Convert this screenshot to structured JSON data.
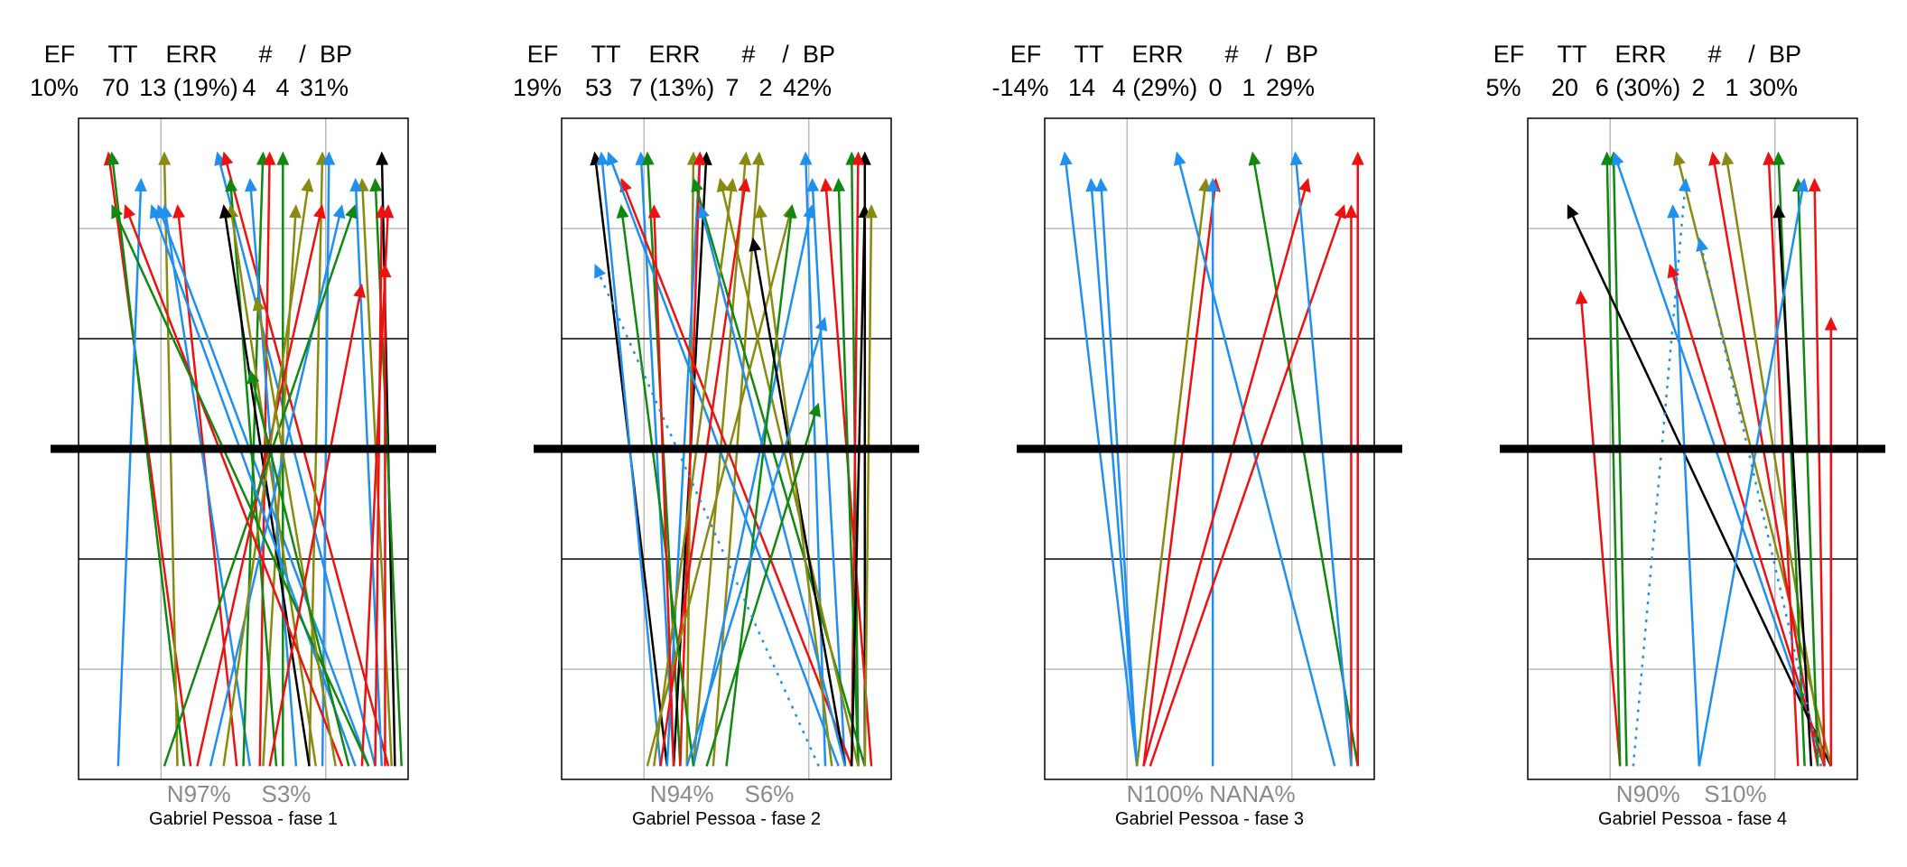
{
  "colors": {
    "blue": "#2090f0",
    "red": "#ee1111",
    "green": "#118811",
    "olive": "#8a8a11",
    "black": "#000000",
    "grid_light": "#bbbbbb",
    "grid_dark": "#000000"
  },
  "header_labels": [
    "EF",
    "TT",
    "ERR",
    "#",
    "/",
    "BP"
  ],
  "chart_data": [
    {
      "type": "line",
      "caption": "Gabriel Pessoa  - fase 1",
      "stats": [
        "10%",
        "70",
        "13 (19%)",
        "4",
        "4",
        "31%"
      ],
      "bottom_labels": [
        "N97%",
        "S3%"
      ],
      "xlim": [
        0,
        1
      ],
      "ylim": [
        0,
        1
      ],
      "segments": [
        {
          "x0": 0.34,
          "y0": 0.02,
          "x1": 0.09,
          "y1": 0.95,
          "c": "red"
        },
        {
          "x0": 0.32,
          "y0": 0.02,
          "x1": 0.1,
          "y1": 0.95,
          "c": "green"
        },
        {
          "x0": 0.3,
          "y0": 0.02,
          "x1": 0.26,
          "y1": 0.95,
          "c": "olive"
        },
        {
          "x0": 0.12,
          "y0": 0.02,
          "x1": 0.19,
          "y1": 0.91,
          "c": "blue"
        },
        {
          "x0": 0.48,
          "y0": 0.02,
          "x1": 0.3,
          "y1": 0.87,
          "c": "red"
        },
        {
          "x0": 0.52,
          "y0": 0.02,
          "x1": 0.26,
          "y1": 0.87,
          "c": "blue"
        },
        {
          "x0": 0.88,
          "y0": 0.02,
          "x1": 0.24,
          "y1": 0.87,
          "c": "blue"
        },
        {
          "x0": 0.9,
          "y0": 0.02,
          "x1": 0.42,
          "y1": 0.95,
          "c": "blue"
        },
        {
          "x0": 0.94,
          "y0": 0.02,
          "x1": 0.44,
          "y1": 0.95,
          "c": "red"
        },
        {
          "x0": 0.5,
          "y0": 0.02,
          "x1": 0.56,
          "y1": 0.95,
          "c": "green"
        },
        {
          "x0": 0.55,
          "y0": 0.02,
          "x1": 0.58,
          "y1": 0.95,
          "c": "red"
        },
        {
          "x0": 0.62,
          "y0": 0.02,
          "x1": 0.62,
          "y1": 0.95,
          "c": "green"
        },
        {
          "x0": 0.7,
          "y0": 0.02,
          "x1": 0.74,
          "y1": 0.95,
          "c": "olive"
        },
        {
          "x0": 0.74,
          "y0": 0.02,
          "x1": 0.76,
          "y1": 0.95,
          "c": "blue"
        },
        {
          "x0": 0.96,
          "y0": 0.02,
          "x1": 0.92,
          "y1": 0.95,
          "c": "black"
        },
        {
          "x0": 0.98,
          "y0": 0.02,
          "x1": 0.9,
          "y1": 0.91,
          "c": "green"
        },
        {
          "x0": 0.95,
          "y0": 0.02,
          "x1": 0.86,
          "y1": 0.91,
          "c": "olive"
        },
        {
          "x0": 0.92,
          "y0": 0.02,
          "x1": 0.84,
          "y1": 0.91,
          "c": "blue"
        },
        {
          "x0": 0.56,
          "y0": 0.02,
          "x1": 0.66,
          "y1": 0.87,
          "c": "olive"
        },
        {
          "x0": 0.6,
          "y0": 0.02,
          "x1": 0.46,
          "y1": 0.91,
          "c": "green"
        },
        {
          "x0": 0.66,
          "y0": 0.02,
          "x1": 0.52,
          "y1": 0.91,
          "c": "blue"
        },
        {
          "x0": 0.72,
          "y0": 0.02,
          "x1": 0.46,
          "y1": 0.87,
          "c": "olive"
        },
        {
          "x0": 0.7,
          "y0": 0.02,
          "x1": 0.44,
          "y1": 0.87,
          "c": "black"
        },
        {
          "x0": 0.86,
          "y0": 0.02,
          "x1": 0.94,
          "y1": 0.87,
          "c": "red"
        },
        {
          "x0": 0.9,
          "y0": 0.02,
          "x1": 0.92,
          "y1": 0.87,
          "c": "red"
        },
        {
          "x0": 0.93,
          "y0": 0.02,
          "x1": 0.93,
          "y1": 0.78,
          "c": "red"
        },
        {
          "x0": 0.4,
          "y0": 0.02,
          "x1": 0.8,
          "y1": 0.87,
          "c": "blue"
        },
        {
          "x0": 0.36,
          "y0": 0.02,
          "x1": 0.74,
          "y1": 0.87,
          "c": "red"
        },
        {
          "x0": 0.44,
          "y0": 0.02,
          "x1": 0.7,
          "y1": 0.91,
          "c": "olive"
        },
        {
          "x0": 0.26,
          "y0": 0.02,
          "x1": 0.84,
          "y1": 0.87,
          "c": "green"
        },
        {
          "x0": 0.84,
          "y0": 0.02,
          "x1": 0.22,
          "y1": 0.87,
          "c": "blue"
        },
        {
          "x0": 0.8,
          "y0": 0.02,
          "x1": 0.14,
          "y1": 0.87,
          "c": "red"
        },
        {
          "x0": 0.88,
          "y0": 0.02,
          "x1": 0.1,
          "y1": 0.87,
          "c": "green"
        },
        {
          "x0": 0.78,
          "y0": 0.02,
          "x1": 0.54,
          "y1": 0.73,
          "c": "olive"
        },
        {
          "x0": 0.82,
          "y0": 0.02,
          "x1": 0.52,
          "y1": 0.62,
          "c": "green"
        },
        {
          "x0": 0.58,
          "y0": 0.02,
          "x1": 0.86,
          "y1": 0.75,
          "c": "red"
        }
      ]
    },
    {
      "type": "line",
      "caption": "Gabriel Pessoa  - fase 2",
      "stats": [
        "19%",
        "53",
        "7 (13%)",
        "7",
        "2",
        "42%"
      ],
      "bottom_labels": [
        "N94%",
        "S6%"
      ],
      "xlim": [
        0,
        1
      ],
      "ylim": [
        0,
        1
      ],
      "segments": [
        {
          "x0": 0.32,
          "y0": 0.02,
          "x1": 0.1,
          "y1": 0.95,
          "c": "black"
        },
        {
          "x0": 0.3,
          "y0": 0.02,
          "x1": 0.12,
          "y1": 0.95,
          "c": "blue"
        },
        {
          "x0": 0.34,
          "y0": 0.02,
          "x1": 0.24,
          "y1": 0.95,
          "c": "blue"
        },
        {
          "x0": 0.36,
          "y0": 0.02,
          "x1": 0.26,
          "y1": 0.95,
          "c": "green"
        },
        {
          "x0": 0.38,
          "y0": 0.02,
          "x1": 0.4,
          "y1": 0.95,
          "c": "olive"
        },
        {
          "x0": 0.32,
          "y0": 0.02,
          "x1": 0.42,
          "y1": 0.95,
          "c": "blue"
        },
        {
          "x0": 0.34,
          "y0": 0.02,
          "x1": 0.44,
          "y1": 0.95,
          "c": "black"
        },
        {
          "x0": 0.36,
          "y0": 0.02,
          "x1": 0.42,
          "y1": 0.95,
          "c": "red"
        },
        {
          "x0": 0.4,
          "y0": 0.02,
          "x1": 0.56,
          "y1": 0.95,
          "c": "olive"
        },
        {
          "x0": 0.46,
          "y0": 0.02,
          "x1": 0.6,
          "y1": 0.95,
          "c": "olive"
        },
        {
          "x0": 0.8,
          "y0": 0.02,
          "x1": 0.74,
          "y1": 0.95,
          "c": "blue"
        },
        {
          "x0": 0.9,
          "y0": 0.02,
          "x1": 0.88,
          "y1": 0.95,
          "c": "green"
        },
        {
          "x0": 0.92,
          "y0": 0.02,
          "x1": 0.92,
          "y1": 0.95,
          "c": "black"
        },
        {
          "x0": 0.88,
          "y0": 0.02,
          "x1": 0.9,
          "y1": 0.95,
          "c": "red"
        },
        {
          "x0": 0.94,
          "y0": 0.02,
          "x1": 0.8,
          "y1": 0.91,
          "c": "red"
        },
        {
          "x0": 0.9,
          "y0": 0.02,
          "x1": 0.84,
          "y1": 0.91,
          "c": "green"
        },
        {
          "x0": 0.86,
          "y0": 0.02,
          "x1": 0.76,
          "y1": 0.91,
          "c": "blue"
        },
        {
          "x0": 0.88,
          "y0": 0.02,
          "x1": 0.18,
          "y1": 0.91,
          "c": "red"
        },
        {
          "x0": 0.84,
          "y0": 0.02,
          "x1": 0.14,
          "y1": 0.95,
          "c": "blue"
        },
        {
          "x0": 0.92,
          "y0": 0.02,
          "x1": 0.4,
          "y1": 0.91,
          "c": "green"
        },
        {
          "x0": 0.9,
          "y0": 0.02,
          "x1": 0.48,
          "y1": 0.91,
          "c": "olive"
        },
        {
          "x0": 0.28,
          "y0": 0.02,
          "x1": 0.52,
          "y1": 0.91,
          "c": "olive"
        },
        {
          "x0": 0.3,
          "y0": 0.02,
          "x1": 0.56,
          "y1": 0.91,
          "c": "red"
        },
        {
          "x0": 0.26,
          "y0": 0.02,
          "x1": 0.7,
          "y1": 0.87,
          "c": "olive"
        },
        {
          "x0": 0.4,
          "y0": 0.02,
          "x1": 0.76,
          "y1": 0.87,
          "c": "blue"
        },
        {
          "x0": 0.5,
          "y0": 0.02,
          "x1": 0.7,
          "y1": 0.87,
          "c": "green"
        },
        {
          "x0": 0.88,
          "y0": 0.02,
          "x1": 0.92,
          "y1": 0.87,
          "c": "black"
        },
        {
          "x0": 0.92,
          "y0": 0.02,
          "x1": 0.94,
          "y1": 0.87,
          "c": "olive"
        },
        {
          "x0": 0.86,
          "y0": 0.02,
          "x1": 0.58,
          "y1": 0.82,
          "c": "black"
        },
        {
          "x0": 0.82,
          "y0": 0.02,
          "x1": 0.6,
          "y1": 0.87,
          "c": "olive"
        },
        {
          "x0": 0.4,
          "y0": 0.02,
          "x1": 0.18,
          "y1": 0.87,
          "c": "green"
        },
        {
          "x0": 0.34,
          "y0": 0.02,
          "x1": 0.28,
          "y1": 0.87,
          "c": "red"
        },
        {
          "x0": 0.86,
          "y0": 0.02,
          "x1": 0.42,
          "y1": 0.87,
          "c": "blue"
        },
        {
          "x0": 0.38,
          "y0": 0.02,
          "x1": 0.8,
          "y1": 0.7,
          "c": "blue"
        },
        {
          "x0": 0.44,
          "y0": 0.02,
          "x1": 0.78,
          "y1": 0.57,
          "c": "green"
        },
        {
          "x0": 0.78,
          "y0": 0.02,
          "x1": 0.1,
          "y1": 0.78,
          "c": "blue",
          "dashed": true
        }
      ]
    },
    {
      "type": "line",
      "caption": "Gabriel Pessoa  - fase 3",
      "stats": [
        "-14%",
        "14",
        "4 (29%)",
        "0",
        "1",
        "29%"
      ],
      "bottom_labels": [
        "N100%",
        "NANA%"
      ],
      "xlim": [
        0,
        1
      ],
      "ylim": [
        0,
        1
      ],
      "segments": [
        {
          "x0": 0.28,
          "y0": 0.02,
          "x1": 0.06,
          "y1": 0.95,
          "c": "blue"
        },
        {
          "x0": 0.28,
          "y0": 0.02,
          "x1": 0.14,
          "y1": 0.91,
          "c": "blue"
        },
        {
          "x0": 0.28,
          "y0": 0.02,
          "x1": 0.17,
          "y1": 0.91,
          "c": "blue"
        },
        {
          "x0": 0.28,
          "y0": 0.02,
          "x1": 0.49,
          "y1": 0.91,
          "c": "olive"
        },
        {
          "x0": 0.3,
          "y0": 0.02,
          "x1": 0.52,
          "y1": 0.91,
          "c": "red"
        },
        {
          "x0": 0.51,
          "y0": 0.02,
          "x1": 0.51,
          "y1": 0.91,
          "c": "blue"
        },
        {
          "x0": 0.88,
          "y0": 0.02,
          "x1": 0.4,
          "y1": 0.95,
          "c": "blue"
        },
        {
          "x0": 0.95,
          "y0": 0.02,
          "x1": 0.63,
          "y1": 0.95,
          "c": "green"
        },
        {
          "x0": 0.3,
          "y0": 0.02,
          "x1": 0.8,
          "y1": 0.91,
          "c": "red"
        },
        {
          "x0": 0.32,
          "y0": 0.02,
          "x1": 0.91,
          "y1": 0.87,
          "c": "red"
        },
        {
          "x0": 0.93,
          "y0": 0.02,
          "x1": 0.93,
          "y1": 0.87,
          "c": "red"
        },
        {
          "x0": 0.95,
          "y0": 0.02,
          "x1": 0.95,
          "y1": 0.95,
          "c": "red"
        },
        {
          "x0": 0.93,
          "y0": 0.02,
          "x1": 0.76,
          "y1": 0.95,
          "c": "blue"
        }
      ]
    },
    {
      "type": "line",
      "caption": "Gabriel Pessoa  - fase 4",
      "stats": [
        "5%",
        "20",
        "6 (30%)",
        "2",
        "1",
        "30%"
      ],
      "bottom_labels": [
        "N90%",
        "S10%"
      ],
      "xlim": [
        0,
        1
      ],
      "ylim": [
        0,
        1
      ],
      "segments": [
        {
          "x0": 0.28,
          "y0": 0.02,
          "x1": 0.16,
          "y1": 0.74,
          "c": "red"
        },
        {
          "x0": 0.28,
          "y0": 0.02,
          "x1": 0.24,
          "y1": 0.95,
          "c": "green"
        },
        {
          "x0": 0.3,
          "y0": 0.02,
          "x1": 0.26,
          "y1": 0.95,
          "c": "green"
        },
        {
          "x0": 0.9,
          "y0": 0.02,
          "x1": 0.26,
          "y1": 0.95,
          "c": "blue"
        },
        {
          "x0": 0.92,
          "y0": 0.02,
          "x1": 0.12,
          "y1": 0.87,
          "c": "black"
        },
        {
          "x0": 0.52,
          "y0": 0.02,
          "x1": 0.44,
          "y1": 0.87,
          "c": "blue"
        },
        {
          "x0": 0.9,
          "y0": 0.02,
          "x1": 0.43,
          "y1": 0.78,
          "c": "red"
        },
        {
          "x0": 0.92,
          "y0": 0.02,
          "x1": 0.45,
          "y1": 0.95,
          "c": "olive"
        },
        {
          "x0": 0.88,
          "y0": 0.02,
          "x1": 0.56,
          "y1": 0.95,
          "c": "red"
        },
        {
          "x0": 0.9,
          "y0": 0.02,
          "x1": 0.6,
          "y1": 0.95,
          "c": "olive"
        },
        {
          "x0": 0.82,
          "y0": 0.02,
          "x1": 0.73,
          "y1": 0.95,
          "c": "red"
        },
        {
          "x0": 0.84,
          "y0": 0.02,
          "x1": 0.76,
          "y1": 0.95,
          "c": "green"
        },
        {
          "x0": 0.86,
          "y0": 0.02,
          "x1": 0.76,
          "y1": 0.87,
          "c": "black"
        },
        {
          "x0": 0.88,
          "y0": 0.02,
          "x1": 0.82,
          "y1": 0.91,
          "c": "green"
        },
        {
          "x0": 0.52,
          "y0": 0.02,
          "x1": 0.84,
          "y1": 0.91,
          "c": "blue"
        },
        {
          "x0": 0.9,
          "y0": 0.02,
          "x1": 0.87,
          "y1": 0.91,
          "c": "red"
        },
        {
          "x0": 0.92,
          "y0": 0.02,
          "x1": 0.92,
          "y1": 0.7,
          "c": "red"
        },
        {
          "x0": 0.32,
          "y0": 0.02,
          "x1": 0.48,
          "y1": 0.91,
          "c": "blue",
          "dashed": true
        },
        {
          "x0": 0.89,
          "y0": 0.02,
          "x1": 0.52,
          "y1": 0.82,
          "c": "blue",
          "dashed": true
        }
      ]
    }
  ]
}
